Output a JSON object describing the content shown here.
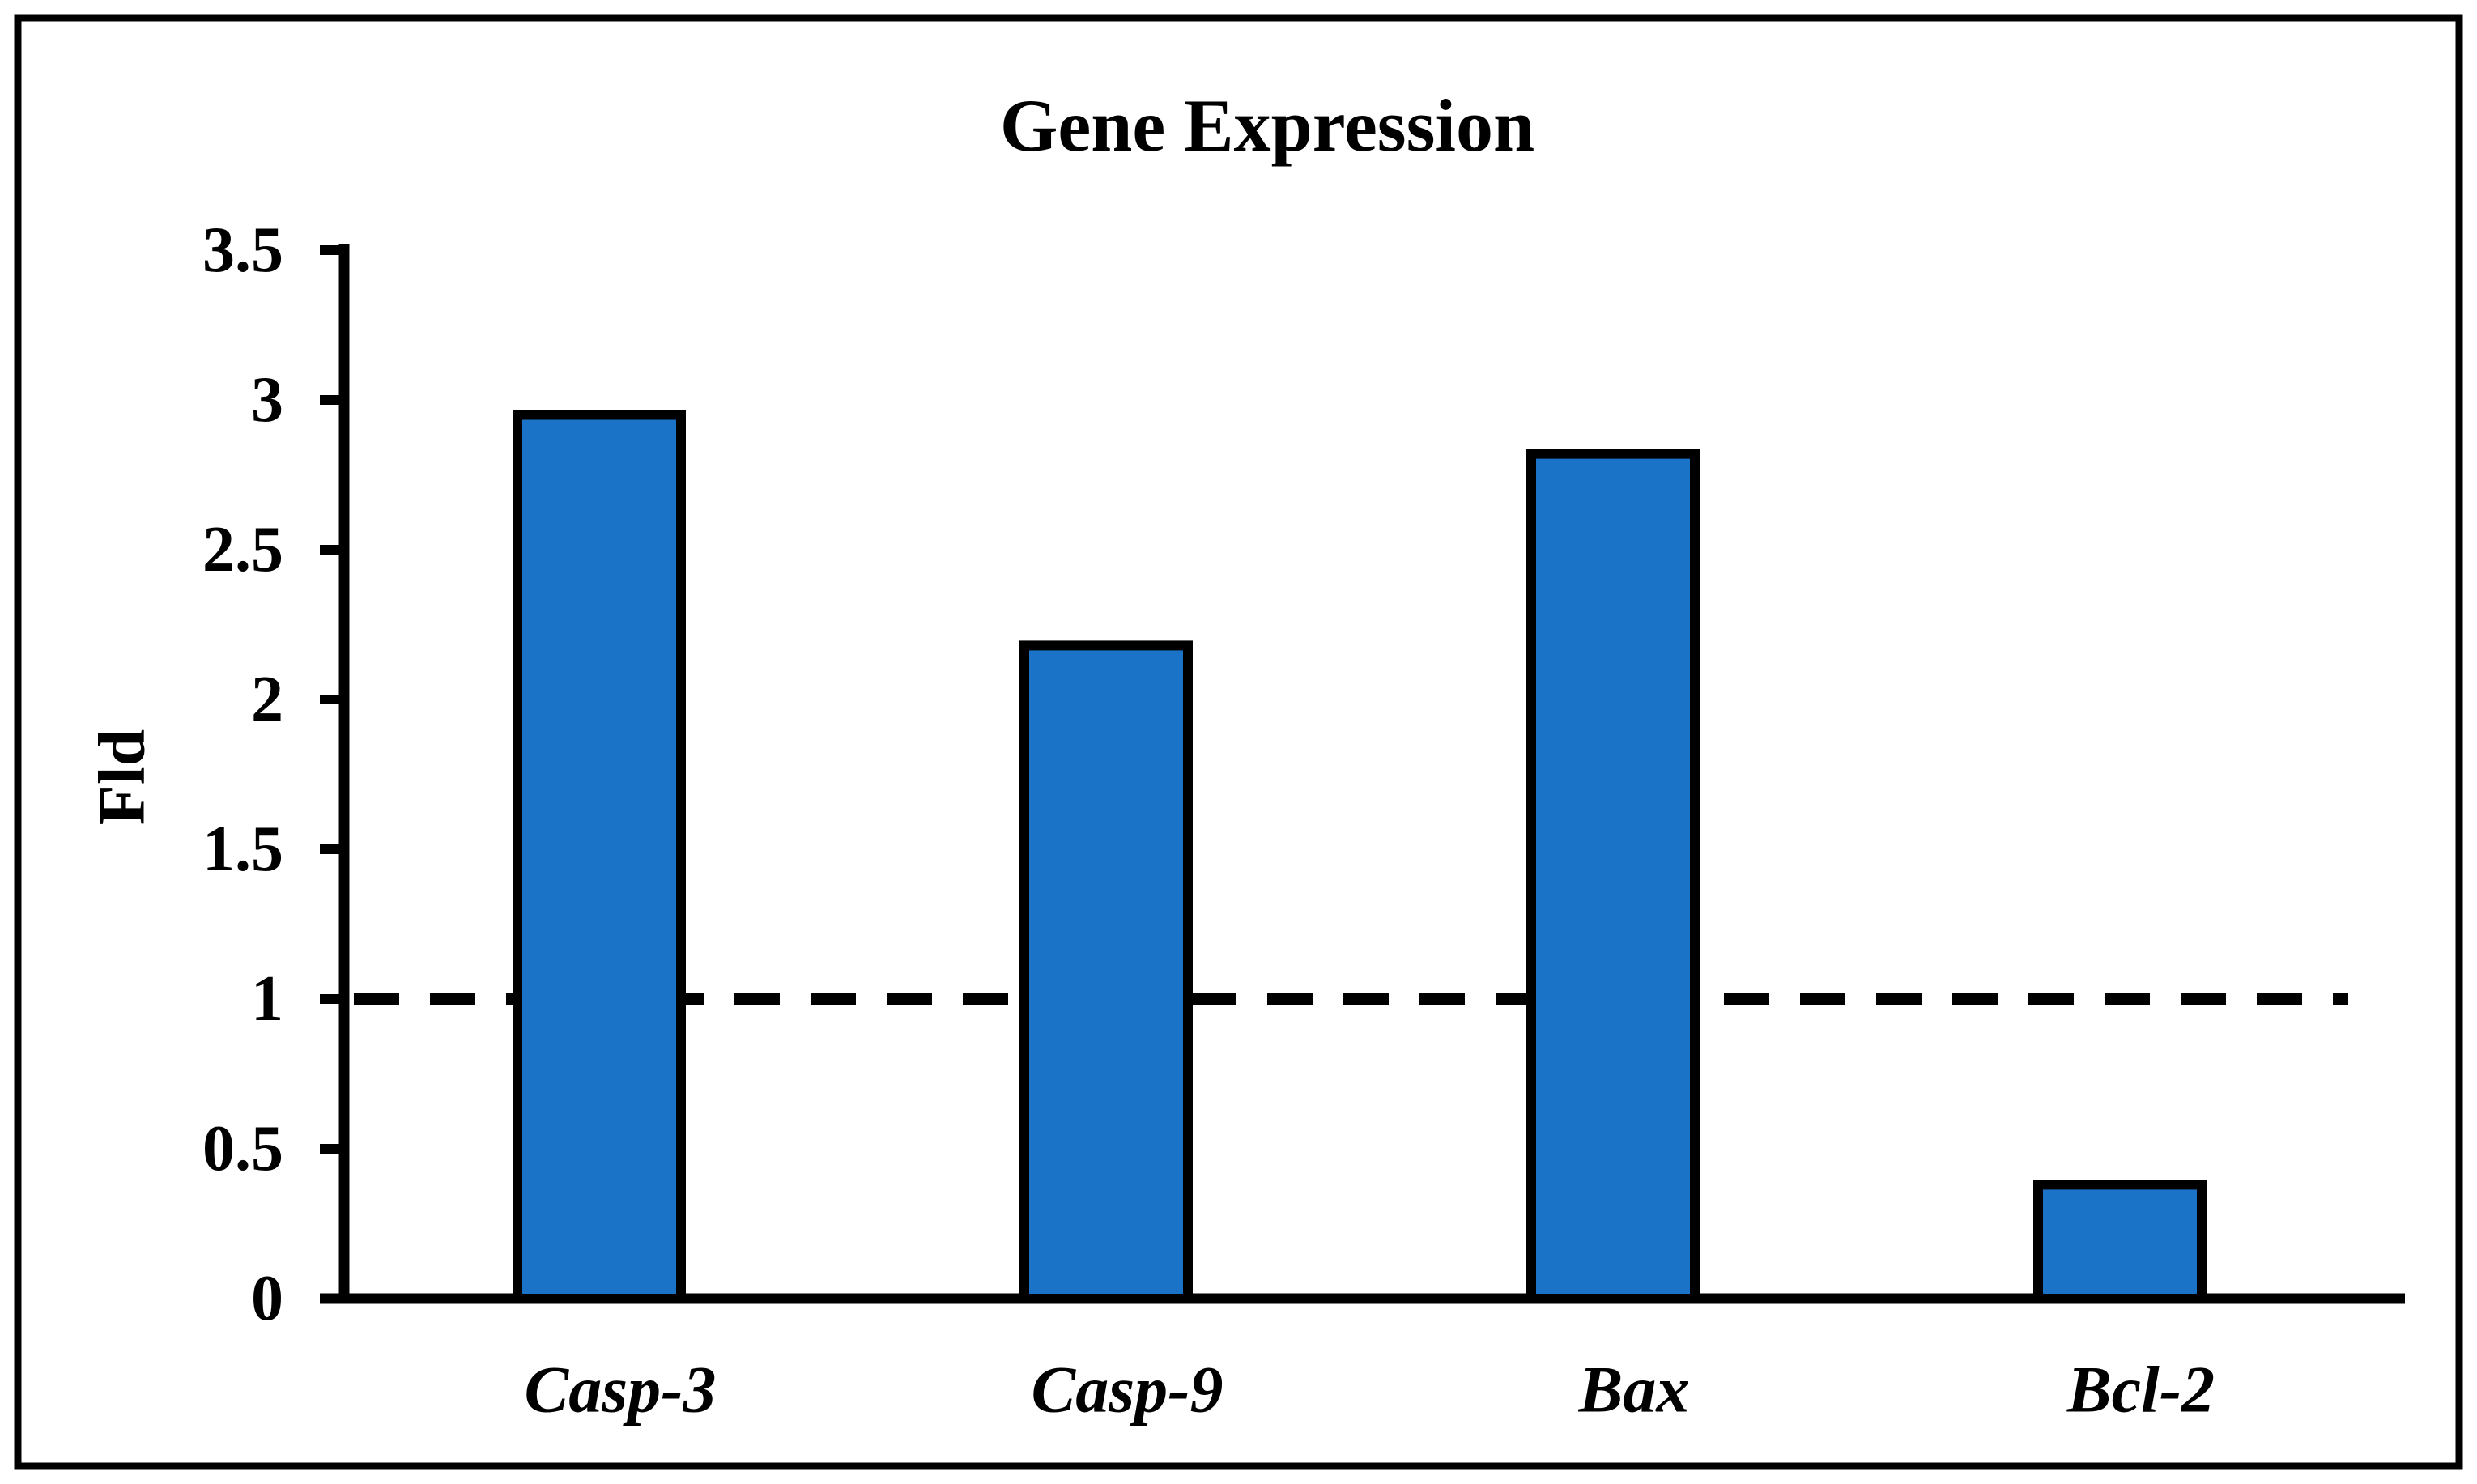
{
  "figure": {
    "background": "#ffffff",
    "border_color": "#000000"
  },
  "chart_data": {
    "type": "bar",
    "title": "Gene Expression",
    "xlabel": "",
    "ylabel": "Fld",
    "categories": [
      "Casp-3",
      "Casp-9",
      "Bax",
      "Bcl-2"
    ],
    "values": [
      2.95,
      2.18,
      2.82,
      0.38
    ],
    "ylim": [
      0,
      3.5
    ],
    "ytick_step": 0.5,
    "ytick_labels": [
      "0",
      "0.5",
      "1",
      "1.5",
      "2",
      "2.5",
      "3",
      "3.5"
    ],
    "reference_line": {
      "value": 1,
      "style": "dashed",
      "color": "#000000"
    },
    "bar_color": "#1B73C8",
    "bar_border_color": "#000000",
    "axis_color": "#000000",
    "grid": false,
    "legend": null
  }
}
